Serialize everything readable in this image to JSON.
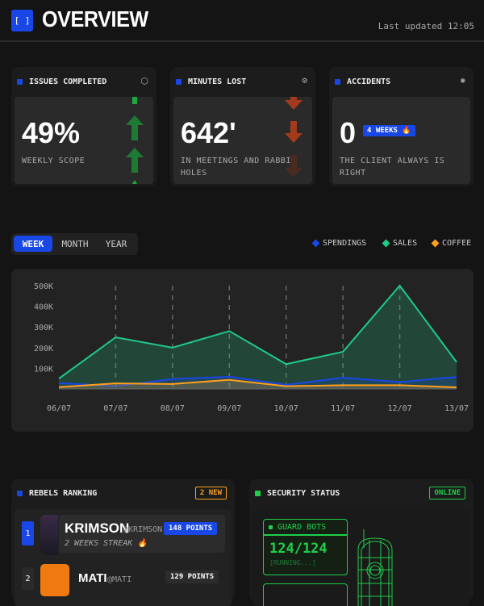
{
  "header": {
    "logo": "[ ]",
    "title": "OVERVIEW",
    "updated": "Last updated 12:05"
  },
  "stats": [
    {
      "title": "ISSUES COMPLETED",
      "icon": "hexagon-icon",
      "value": "49%",
      "subtitle": "WEEKLY SCOPE",
      "trend": "up",
      "color": "#1f7a34"
    },
    {
      "title": "MINUTES LOST",
      "icon": "gear-icon",
      "value": "642'",
      "subtitle": "IN MEETINGS AND RABBIT HOLES",
      "trend": "down",
      "color": "#a33a1c"
    },
    {
      "title": "ACCIDENTS",
      "icon": "sun-gear-icon",
      "value": "0",
      "badge": "4 WEEKS 🔥",
      "subtitle": "THE CLIENT ALWAYS IS RIGHT"
    }
  ],
  "tabs": [
    {
      "label": "WEEK",
      "active": true
    },
    {
      "label": "MONTH",
      "active": false
    },
    {
      "label": "YEAR",
      "active": false
    }
  ],
  "chart_data": {
    "type": "area",
    "x": [
      "06/07",
      "07/07",
      "08/07",
      "09/07",
      "10/07",
      "11/07",
      "12/07",
      "13/07"
    ],
    "yticks": [
      "100K",
      "200K",
      "300K",
      "400K",
      "500K"
    ],
    "ylim": [
      0,
      500000
    ],
    "legend_position": "top-right",
    "grid": "vertical dashed",
    "series": [
      {
        "name": "SPENDINGS",
        "color": "#1947e5",
        "values": [
          29000,
          13000,
          48000,
          59000,
          20000,
          54000,
          33000,
          58000
        ]
      },
      {
        "name": "SALES",
        "color": "#1fc98a",
        "values": [
          50000,
          250000,
          200000,
          280000,
          120000,
          180000,
          500000,
          130000
        ]
      },
      {
        "name": "COFFEE",
        "color": "#ffa01a",
        "values": [
          9000,
          27000,
          24000,
          44000,
          13000,
          18000,
          18000,
          8000
        ]
      }
    ]
  },
  "ranking": {
    "title": "REBELS RANKING",
    "badge": "2 NEW",
    "items": [
      {
        "rank": "1",
        "name": "KRIMSON",
        "handle": "@KRIMSON",
        "points": "148 POINTS",
        "streak": "2 WEEKS STREAK 🔥"
      },
      {
        "rank": "2",
        "name": "MATI",
        "handle": "@MATI",
        "points": "129 POINTS"
      }
    ]
  },
  "security": {
    "title": "SECURITY STATUS",
    "status": "ONLINE",
    "guard_label": "GUARD BOTS",
    "guard_value": "124/124",
    "guard_state": "[RUNNING...]"
  }
}
